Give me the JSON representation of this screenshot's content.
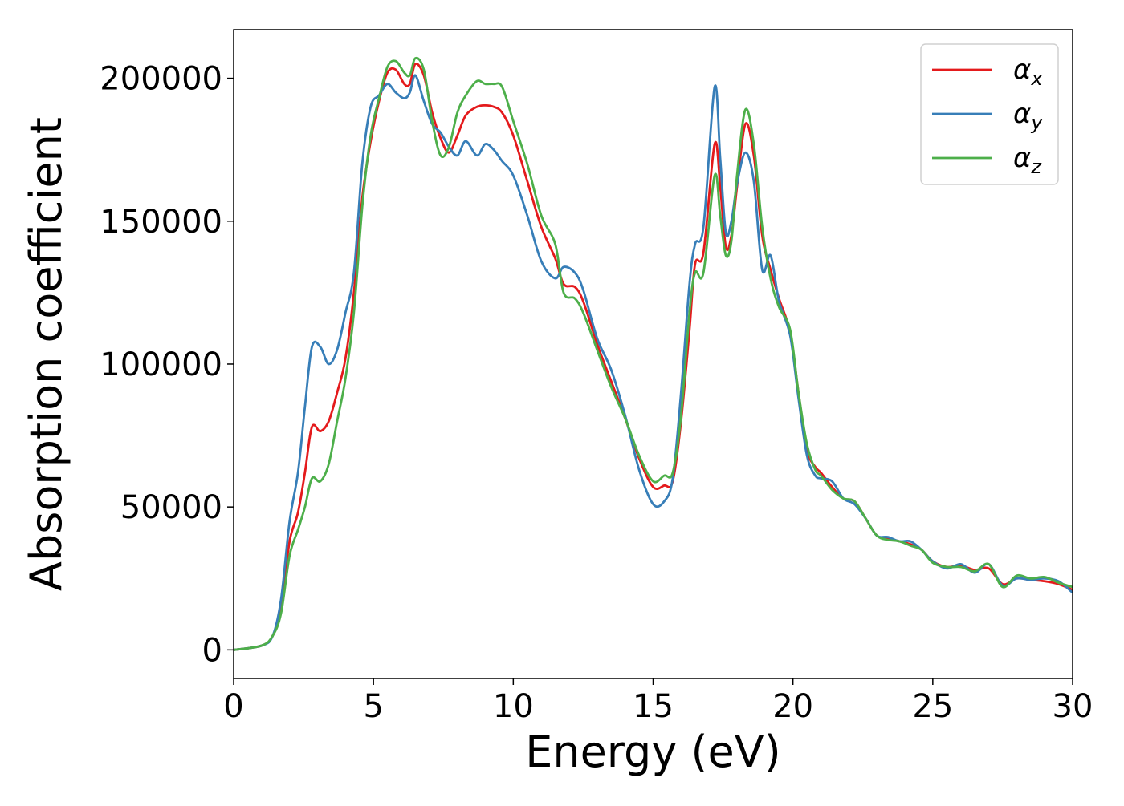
{
  "chart_data": {
    "type": "line",
    "xlabel": "Energy (eV)",
    "ylabel": "Absorption coefficient",
    "xlim": [
      0,
      30
    ],
    "ylim": [
      -10000,
      217000
    ],
    "x_ticks": [
      0,
      5,
      10,
      15,
      20,
      25,
      30
    ],
    "y_ticks": [
      0,
      50000,
      100000,
      150000,
      200000
    ],
    "grid": false,
    "legend_position": "top-right",
    "series": [
      {
        "name": "α_x",
        "symbol": "α",
        "subscript": "x",
        "color": "#e41a1c",
        "points": [
          [
            0,
            0
          ],
          [
            1,
            1500
          ],
          [
            1.4,
            5000
          ],
          [
            1.7,
            15000
          ],
          [
            2,
            38000
          ],
          [
            2.3,
            48000
          ],
          [
            2.55,
            62000
          ],
          [
            2.8,
            78000
          ],
          [
            3.1,
            76500
          ],
          [
            3.4,
            80000
          ],
          [
            3.7,
            90000
          ],
          [
            4,
            102000
          ],
          [
            4.3,
            125000
          ],
          [
            4.6,
            158000
          ],
          [
            4.9,
            178000
          ],
          [
            5.2,
            192000
          ],
          [
            5.5,
            202000
          ],
          [
            5.8,
            203000
          ],
          [
            6.1,
            198000
          ],
          [
            6.3,
            198000
          ],
          [
            6.5,
            205000
          ],
          [
            6.8,
            201000
          ],
          [
            7.1,
            188000
          ],
          [
            7.4,
            179000
          ],
          [
            7.7,
            174000
          ],
          [
            8,
            180000
          ],
          [
            8.3,
            187000
          ],
          [
            8.7,
            190000
          ],
          [
            9,
            190500
          ],
          [
            9.3,
            190000
          ],
          [
            9.6,
            188000
          ],
          [
            10,
            180000
          ],
          [
            10.5,
            164000
          ],
          [
            11,
            148000
          ],
          [
            11.5,
            137000
          ],
          [
            11.8,
            128000
          ],
          [
            12.2,
            127000
          ],
          [
            12.5,
            122000
          ],
          [
            13,
            107000
          ],
          [
            13.5,
            94000
          ],
          [
            14,
            81000
          ],
          [
            14.5,
            67000
          ],
          [
            15,
            57000
          ],
          [
            15.4,
            57500
          ],
          [
            15.7,
            59000
          ],
          [
            16,
            80000
          ],
          [
            16.3,
            112000
          ],
          [
            16.5,
            135000
          ],
          [
            16.8,
            139000
          ],
          [
            17.2,
            177000
          ],
          [
            17.4,
            162000
          ],
          [
            17.6,
            141000
          ],
          [
            17.8,
            145000
          ],
          [
            18,
            162000
          ],
          [
            18.3,
            184000
          ],
          [
            18.6,
            173000
          ],
          [
            18.9,
            145000
          ],
          [
            19.2,
            133000
          ],
          [
            19.5,
            123000
          ],
          [
            19.9,
            111000
          ],
          [
            20.2,
            90000
          ],
          [
            20.5,
            70000
          ],
          [
            20.8,
            64000
          ],
          [
            21,
            62000
          ],
          [
            21.4,
            57000
          ],
          [
            21.8,
            53000
          ],
          [
            22.2,
            52000
          ],
          [
            22.6,
            46000
          ],
          [
            23,
            40000
          ],
          [
            23.4,
            39000
          ],
          [
            23.8,
            38000
          ],
          [
            24.2,
            37000
          ],
          [
            24.6,
            35000
          ],
          [
            25,
            31000
          ],
          [
            25.5,
            29000
          ],
          [
            26,
            29500
          ],
          [
            26.5,
            28000
          ],
          [
            27,
            28500
          ],
          [
            27.5,
            23000
          ],
          [
            28,
            25000
          ],
          [
            28.5,
            24500
          ],
          [
            29,
            24000
          ],
          [
            29.5,
            23000
          ],
          [
            30,
            21000
          ]
        ]
      },
      {
        "name": "α_y",
        "symbol": "α",
        "subscript": "y",
        "color": "#377eb8",
        "points": [
          [
            0,
            0
          ],
          [
            1,
            1500
          ],
          [
            1.4,
            5000
          ],
          [
            1.7,
            18000
          ],
          [
            2,
            45000
          ],
          [
            2.3,
            62000
          ],
          [
            2.55,
            85000
          ],
          [
            2.8,
            106000
          ],
          [
            3.1,
            106000
          ],
          [
            3.4,
            100000
          ],
          [
            3.7,
            105000
          ],
          [
            4,
            118000
          ],
          [
            4.3,
            132000
          ],
          [
            4.6,
            170000
          ],
          [
            4.9,
            190000
          ],
          [
            5.2,
            194000
          ],
          [
            5.5,
            198000
          ],
          [
            5.8,
            195000
          ],
          [
            6.1,
            193000
          ],
          [
            6.3,
            195000
          ],
          [
            6.5,
            201000
          ],
          [
            6.8,
            192000
          ],
          [
            7.1,
            184000
          ],
          [
            7.4,
            181000
          ],
          [
            7.7,
            176000
          ],
          [
            8,
            173000
          ],
          [
            8.3,
            178000
          ],
          [
            8.7,
            173000
          ],
          [
            9,
            177000
          ],
          [
            9.3,
            175000
          ],
          [
            9.6,
            171000
          ],
          [
            10,
            166000
          ],
          [
            10.5,
            152000
          ],
          [
            11,
            136000
          ],
          [
            11.5,
            130000
          ],
          [
            11.8,
            134000
          ],
          [
            12.2,
            132000
          ],
          [
            12.5,
            126000
          ],
          [
            13,
            109000
          ],
          [
            13.5,
            98000
          ],
          [
            14,
            82000
          ],
          [
            14.5,
            63000
          ],
          [
            15,
            51000
          ],
          [
            15.4,
            52000
          ],
          [
            15.7,
            60000
          ],
          [
            16,
            90000
          ],
          [
            16.3,
            128000
          ],
          [
            16.5,
            142000
          ],
          [
            16.8,
            148000
          ],
          [
            17.2,
            197000
          ],
          [
            17.4,
            172000
          ],
          [
            17.6,
            146000
          ],
          [
            17.8,
            150000
          ],
          [
            18,
            163000
          ],
          [
            18.3,
            174000
          ],
          [
            18.6,
            164000
          ],
          [
            18.9,
            133000
          ],
          [
            19.2,
            138000
          ],
          [
            19.5,
            122000
          ],
          [
            19.9,
            110000
          ],
          [
            20.2,
            88000
          ],
          [
            20.5,
            68000
          ],
          [
            20.8,
            61000
          ],
          [
            21,
            60000
          ],
          [
            21.4,
            59000
          ],
          [
            21.8,
            53000
          ],
          [
            22.2,
            51000
          ],
          [
            22.6,
            46000
          ],
          [
            23,
            40000
          ],
          [
            23.4,
            39500
          ],
          [
            23.8,
            38000
          ],
          [
            24.2,
            38000
          ],
          [
            24.6,
            35000
          ],
          [
            25,
            31000
          ],
          [
            25.5,
            28500
          ],
          [
            26,
            30000
          ],
          [
            26.5,
            27000
          ],
          [
            27,
            30000
          ],
          [
            27.5,
            22500
          ],
          [
            28,
            25000
          ],
          [
            28.5,
            24500
          ],
          [
            29,
            25000
          ],
          [
            29.5,
            24000
          ],
          [
            30,
            20000
          ]
        ]
      },
      {
        "name": "α_z",
        "symbol": "α",
        "subscript": "z",
        "color": "#4daf4a",
        "points": [
          [
            0,
            0
          ],
          [
            1,
            1500
          ],
          [
            1.4,
            5000
          ],
          [
            1.7,
            13000
          ],
          [
            2,
            33000
          ],
          [
            2.3,
            42000
          ],
          [
            2.55,
            50000
          ],
          [
            2.8,
            60000
          ],
          [
            3.1,
            59000
          ],
          [
            3.4,
            65000
          ],
          [
            3.7,
            80000
          ],
          [
            4,
            95000
          ],
          [
            4.3,
            118000
          ],
          [
            4.6,
            155000
          ],
          [
            4.9,
            180000
          ],
          [
            5.2,
            193000
          ],
          [
            5.5,
            204000
          ],
          [
            5.8,
            206000
          ],
          [
            6.1,
            202000
          ],
          [
            6.3,
            201000
          ],
          [
            6.5,
            207000
          ],
          [
            6.8,
            203000
          ],
          [
            7.1,
            185000
          ],
          [
            7.4,
            173000
          ],
          [
            7.7,
            176000
          ],
          [
            8,
            188000
          ],
          [
            8.3,
            194000
          ],
          [
            8.7,
            199000
          ],
          [
            9,
            198000
          ],
          [
            9.3,
            198000
          ],
          [
            9.6,
            197000
          ],
          [
            10,
            185000
          ],
          [
            10.5,
            170000
          ],
          [
            11,
            152000
          ],
          [
            11.5,
            142000
          ],
          [
            11.8,
            125000
          ],
          [
            12.2,
            123000
          ],
          [
            12.5,
            118000
          ],
          [
            13,
            105000
          ],
          [
            13.5,
            92000
          ],
          [
            14,
            81000
          ],
          [
            14.5,
            68000
          ],
          [
            15,
            59000
          ],
          [
            15.4,
            61000
          ],
          [
            15.7,
            62000
          ],
          [
            16,
            82000
          ],
          [
            16.3,
            118000
          ],
          [
            16.5,
            132000
          ],
          [
            16.8,
            132000
          ],
          [
            17.2,
            166000
          ],
          [
            17.4,
            152000
          ],
          [
            17.6,
            138000
          ],
          [
            17.8,
            143000
          ],
          [
            18,
            166000
          ],
          [
            18.3,
            189000
          ],
          [
            18.6,
            177000
          ],
          [
            18.9,
            148000
          ],
          [
            19.2,
            130000
          ],
          [
            19.5,
            120000
          ],
          [
            19.9,
            112000
          ],
          [
            20.2,
            90000
          ],
          [
            20.5,
            72000
          ],
          [
            20.8,
            63000
          ],
          [
            21,
            61000
          ],
          [
            21.4,
            56000
          ],
          [
            21.8,
            53000
          ],
          [
            22.2,
            52000
          ],
          [
            22.6,
            46000
          ],
          [
            23,
            40000
          ],
          [
            23.4,
            38500
          ],
          [
            23.8,
            38000
          ],
          [
            24.2,
            36500
          ],
          [
            24.6,
            35000
          ],
          [
            25,
            30500
          ],
          [
            25.5,
            29000
          ],
          [
            26,
            29000
          ],
          [
            26.5,
            27500
          ],
          [
            27,
            30000
          ],
          [
            27.5,
            22000
          ],
          [
            28,
            26000
          ],
          [
            28.5,
            25000
          ],
          [
            29,
            25500
          ],
          [
            29.5,
            23500
          ],
          [
            30,
            22000
          ]
        ]
      }
    ]
  }
}
